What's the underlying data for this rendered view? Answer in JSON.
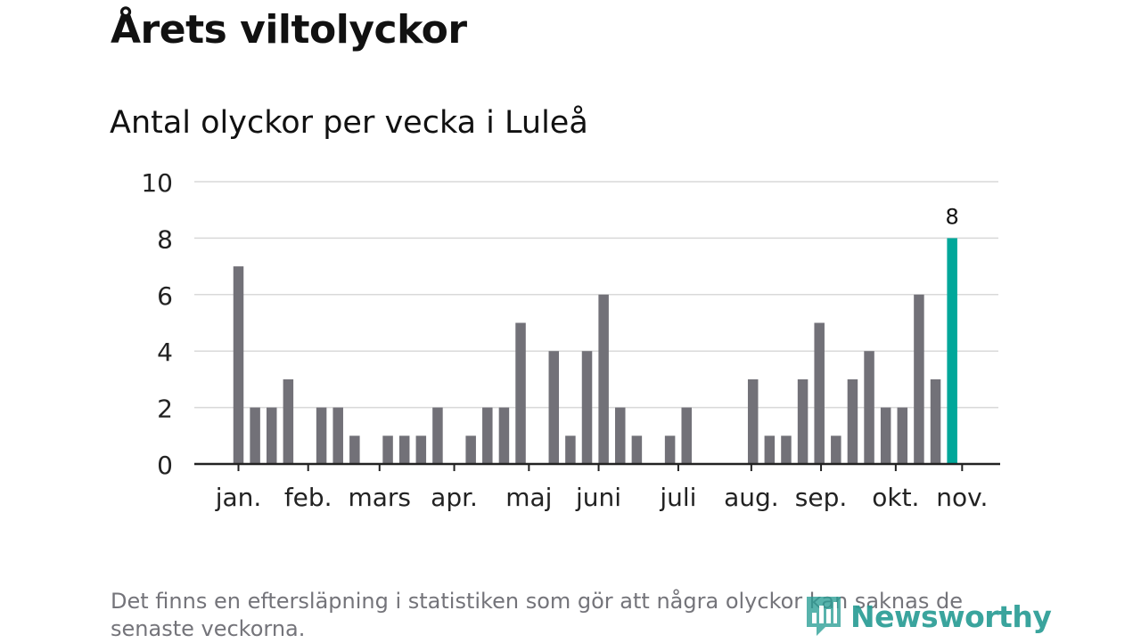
{
  "title": "Årets viltolyckor",
  "subtitle": "Antal olyckor per vecka i Luleå",
  "note": "Det finns en eftersläpning i statistiken som gör att några olyckor kan saknas de senaste veckorna.",
  "logo": {
    "text": "Newsworthy",
    "icon": "newsworthy-bars-icon"
  },
  "colors": {
    "bar": "#727178",
    "highlight": "#00a79a",
    "grid": "#d9d9d9",
    "axis": "#222222"
  },
  "chart_data": {
    "type": "bar",
    "values": [
      7,
      2,
      2,
      3,
      0,
      2,
      2,
      1,
      0,
      1,
      1,
      1,
      2,
      0,
      1,
      2,
      2,
      5,
      0,
      4,
      1,
      4,
      6,
      2,
      1,
      0,
      1,
      2,
      0,
      0,
      0,
      3,
      1,
      1,
      3,
      5,
      1,
      3,
      4,
      2,
      2,
      6,
      3,
      8
    ],
    "highlight_index": 43,
    "highlight_label": "8",
    "month_labels": [
      "jan.",
      "feb.",
      "mars",
      "apr.",
      "maj",
      "juni",
      "juli",
      "aug.",
      "sep.",
      "okt.",
      "nov."
    ],
    "month_label_week_index": [
      0,
      4.2,
      8.5,
      13,
      17.5,
      21.7,
      26.5,
      30.9,
      35.1,
      39.6,
      43.6
    ],
    "y_ticks": [
      "0",
      "2",
      "4",
      "6",
      "8",
      "10"
    ],
    "ylim": [
      0,
      10
    ],
    "grid": true,
    "legend": "none"
  }
}
